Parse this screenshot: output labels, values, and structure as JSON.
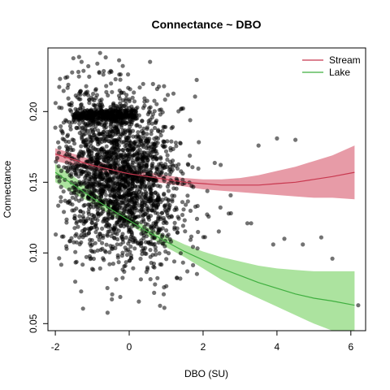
{
  "chart_data": {
    "type": "scatter",
    "title": "Connectance ~ DBO",
    "xlabel": "DBO (SU)",
    "ylabel": "Connectance",
    "xlim": [
      -2.2,
      6.4
    ],
    "ylim": [
      0.045,
      0.245
    ],
    "x_ticks": [
      -2,
      0,
      2,
      4,
      6
    ],
    "x_tick_labels": [
      "-2",
      "0",
      "2",
      "4",
      "6"
    ],
    "y_ticks": [
      0.05,
      0.1,
      0.15,
      0.2
    ],
    "y_tick_labels": [
      "0.05",
      "0.10",
      "0.15",
      "0.20"
    ],
    "grid": false,
    "legend_position": "top-right",
    "points": {
      "name": "",
      "color": "#000000",
      "opacity": 0.55,
      "count": 2600,
      "x_range": [
        -2.0,
        6.2
      ],
      "y_range": [
        0.055,
        0.242
      ],
      "x_center": -0.3,
      "y_center": 0.155,
      "dense_band_y": 0.197,
      "dense_band_x": [
        -1.5,
        0.2
      ],
      "outliers": [
        [
          3.5,
          0.176
        ],
        [
          4.0,
          0.181
        ],
        [
          4.5,
          0.18
        ],
        [
          5.5,
          0.096
        ],
        [
          6.2,
          0.063
        ],
        [
          3.2,
          0.121
        ],
        [
          3.3,
          0.121
        ],
        [
          5.2,
          0.111
        ],
        [
          4.7,
          0.106
        ],
        [
          3.9,
          0.106
        ],
        [
          4.2,
          0.11
        ]
      ]
    },
    "series": [
      {
        "name": "Stream",
        "color": "#C8384F",
        "fill": "#E38A98",
        "x": [
          -2.0,
          -1.5,
          -1.0,
          -0.5,
          0.0,
          0.5,
          1.0,
          1.5,
          2.0,
          2.5,
          3.0,
          3.5,
          4.0,
          4.5,
          5.0,
          5.5,
          6.1
        ],
        "fit": [
          0.17,
          0.166,
          0.162,
          0.159,
          0.156,
          0.154,
          0.152,
          0.15,
          0.149,
          0.148,
          0.148,
          0.148,
          0.149,
          0.15,
          0.152,
          0.154,
          0.157
        ],
        "lower": [
          0.165,
          0.162,
          0.159,
          0.156,
          0.154,
          0.151,
          0.149,
          0.147,
          0.145,
          0.144,
          0.143,
          0.142,
          0.141,
          0.14,
          0.139,
          0.139,
          0.138
        ],
        "upper": [
          0.174,
          0.17,
          0.166,
          0.162,
          0.159,
          0.157,
          0.155,
          0.153,
          0.152,
          0.152,
          0.153,
          0.155,
          0.158,
          0.161,
          0.165,
          0.169,
          0.176
        ]
      },
      {
        "name": "Lake",
        "color": "#3FAF3F",
        "fill": "#9EDE8E",
        "x": [
          -2.0,
          -1.5,
          -1.0,
          -0.5,
          0.0,
          0.5,
          1.0,
          1.5,
          2.0,
          2.5,
          3.0,
          3.5,
          4.0,
          4.5,
          5.0,
          5.5,
          6.1
        ],
        "fit": [
          0.157,
          0.148,
          0.139,
          0.131,
          0.123,
          0.115,
          0.108,
          0.101,
          0.095,
          0.089,
          0.084,
          0.079,
          0.075,
          0.071,
          0.068,
          0.066,
          0.063
        ],
        "lower": [
          0.15,
          0.142,
          0.135,
          0.127,
          0.12,
          0.112,
          0.104,
          0.097,
          0.089,
          0.081,
          0.074,
          0.068,
          0.062,
          0.056,
          0.05,
          0.045,
          0.04
        ],
        "upper": [
          0.163,
          0.154,
          0.144,
          0.134,
          0.126,
          0.118,
          0.112,
          0.106,
          0.101,
          0.097,
          0.094,
          0.091,
          0.089,
          0.088,
          0.087,
          0.087,
          0.087
        ]
      }
    ]
  }
}
